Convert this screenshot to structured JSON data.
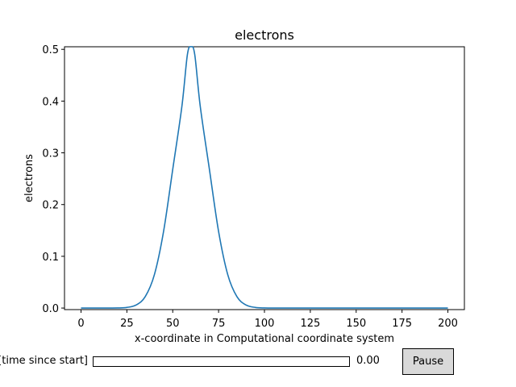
{
  "chart_data": {
    "type": "line",
    "title": "electrons",
    "xlabel": "x-coordinate in Computational coordinate system",
    "ylabel": "electrons",
    "xlim": [
      -9,
      209
    ],
    "ylim": [
      -0.003,
      0.505
    ],
    "xticks": [
      "0",
      "25",
      "50",
      "75",
      "100",
      "125",
      "150",
      "175",
      "200"
    ],
    "yticks": [
      "0.0",
      "0.1",
      "0.2",
      "0.3",
      "0.4",
      "0.5"
    ],
    "grid": false,
    "series": [
      {
        "color": "#1f77b4",
        "x": [
          0,
          10,
          20,
          25,
          30,
          35,
          40,
          45,
          50,
          55,
          58,
          60,
          62,
          65,
          70,
          75,
          80,
          85,
          90,
          95,
          100,
          110,
          125,
          150,
          175,
          200
        ],
        "y": [
          0.0,
          0.0,
          0.0002,
          0.0012,
          0.0058,
          0.022,
          0.0645,
          0.148,
          0.268,
          0.39,
          0.49,
          0.505,
          0.49,
          0.39,
          0.268,
          0.148,
          0.0645,
          0.022,
          0.0058,
          0.0012,
          0.0002,
          0.0,
          0.0,
          0.0,
          0.0,
          0.0
        ]
      }
    ]
  },
  "controls": {
    "slider_label": "[time since start]",
    "slider_value": "0.00",
    "slider_fraction": 0,
    "pause_label": "Pause"
  }
}
